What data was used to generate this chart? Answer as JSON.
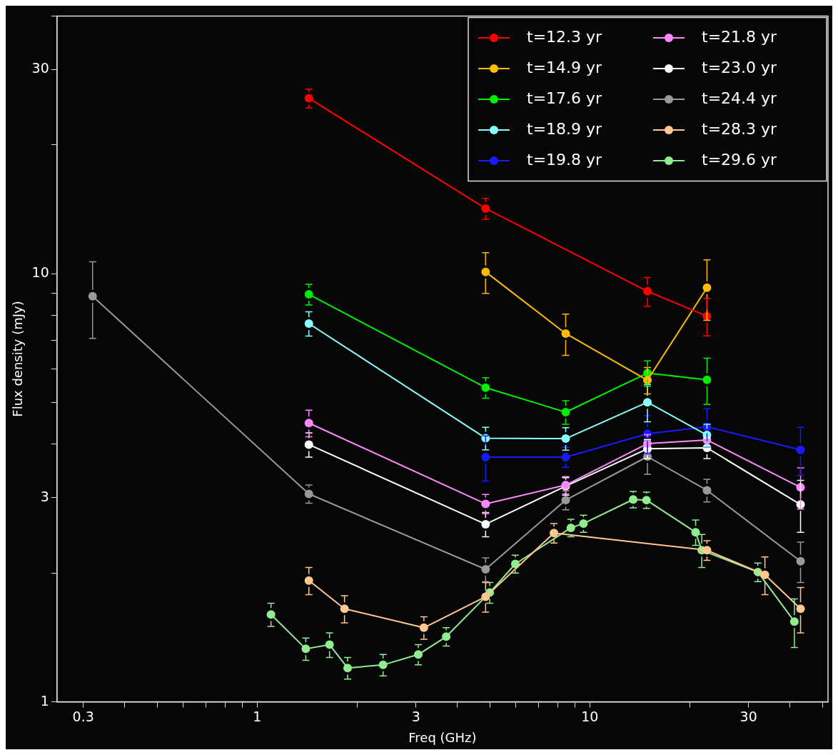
{
  "chart_data": {
    "type": "line",
    "xlabel": "Freq (GHz)",
    "ylabel": "Flux density (mJy)",
    "log": "xy",
    "xlim": [
      0.25,
      52
    ],
    "ylim": [
      1,
      40
    ],
    "xticks": [
      0.3,
      {
        "value": 0.4,
        "label": null
      },
      {
        "value": 0.5,
        "label": null
      },
      {
        "value": 0.6,
        "label": null
      },
      {
        "value": 0.7,
        "label": null
      },
      {
        "value": 0.8,
        "label": null
      },
      {
        "value": 0.9,
        "label": null
      },
      1,
      {
        "value": 2,
        "label": null
      },
      3,
      {
        "value": 4,
        "label": null
      },
      {
        "value": 5,
        "label": null
      },
      {
        "value": 6,
        "label": null
      },
      {
        "value": 7,
        "label": null
      },
      {
        "value": 8,
        "label": null
      },
      {
        "value": 9,
        "label": null
      },
      10,
      {
        "value": 20,
        "label": null
      },
      30,
      {
        "value": 40,
        "label": null
      },
      {
        "value": 50,
        "label": null
      }
    ],
    "yticks": [
      1,
      {
        "value": 2,
        "label": null
      },
      3,
      {
        "value": 4,
        "label": null
      },
      {
        "value": 5,
        "label": null
      },
      {
        "value": 6,
        "label": null
      },
      {
        "value": 7,
        "label": null
      },
      {
        "value": 8,
        "label": null
      },
      {
        "value": 9,
        "label": null
      },
      10,
      {
        "value": 20,
        "label": null
      },
      30,
      {
        "value": 40,
        "label": null
      }
    ],
    "grid": false,
    "legend": "top right",
    "marker": "circle",
    "line_style": "solid",
    "series": [
      {
        "name": "t=12.3 yr",
        "color": "#ff0000",
        "x": [
          1.43,
          4.86,
          14.9,
          22.5
        ],
        "values": [
          25.7,
          14.2,
          9.1,
          7.96
        ],
        "errors": [
          1.3,
          0.8,
          0.7,
          0.8
        ]
      },
      {
        "name": "t=14.9 yr",
        "color": "#ffbb00",
        "x": [
          4.86,
          8.46,
          14.9,
          22.5
        ],
        "values": [
          10.1,
          7.25,
          5.64,
          9.28
        ],
        "errors": [
          1.1,
          0.8,
          0.4,
          1.5
        ]
      },
      {
        "name": "t=17.6 yr",
        "color": "#00ee00",
        "x": [
          1.43,
          4.86,
          8.46,
          14.9,
          22.5
        ],
        "values": [
          8.95,
          5.42,
          4.75,
          5.86,
          5.65
        ],
        "errors": [
          0.5,
          0.3,
          0.3,
          0.4,
          0.7
        ]
      },
      {
        "name": "t=18.9 yr",
        "color": "#88ffff",
        "x": [
          1.43,
          4.86,
          8.46,
          14.9,
          22.5
        ],
        "values": [
          7.65,
          4.13,
          4.12,
          5.01,
          4.2
        ],
        "errors": [
          0.5,
          0.25,
          0.25,
          0.5,
          0.25
        ]
      },
      {
        "name": "t=19.8 yr",
        "color": "#1a1aff",
        "x": [
          4.86,
          8.46,
          14.9,
          22.5,
          43
        ],
        "values": [
          3.73,
          3.73,
          4.23,
          4.39,
          3.88
        ],
        "errors": [
          0.45,
          0.2,
          0.43,
          0.45,
          0.5
        ]
      },
      {
        "name": "t=21.8 yr",
        "color": "#ff88ff",
        "x": [
          1.43,
          4.86,
          8.46,
          14.9,
          22.5,
          43
        ],
        "values": [
          4.48,
          2.9,
          3.21,
          4.01,
          4.09,
          3.17
        ],
        "errors": [
          0.32,
          0.15,
          0.15,
          0.2,
          null,
          0.35
        ]
      },
      {
        "name": "t=23.0 yr",
        "color": "#ffffff",
        "x": [
          1.43,
          4.86,
          8.46,
          14.9,
          22.5,
          43
        ],
        "values": [
          3.99,
          2.6,
          3.19,
          3.9,
          3.92,
          2.89
        ],
        "errors": [
          0.26,
          0.17,
          0.15,
          0.2,
          0.22,
          0.4
        ]
      },
      {
        "name": "t=24.4 yr",
        "color": "#999999",
        "x": [
          0.32,
          1.43,
          4.86,
          8.46,
          14.9,
          22.5,
          43
        ],
        "values": [
          8.86,
          3.06,
          2.04,
          2.96,
          3.74,
          3.12,
          2.13
        ],
        "errors": [
          1.8,
          0.15,
          0.13,
          0.15,
          0.34,
          0.19,
          0.23
        ]
      },
      {
        "name": "t=28.3 yr",
        "color": "#ffc890",
        "x": [
          1.43,
          1.83,
          3.17,
          4.86,
          7.8,
          22.5,
          33.6,
          43
        ],
        "values": [
          1.92,
          1.65,
          1.49,
          1.76,
          2.48,
          2.26,
          1.98,
          1.65
        ],
        "errors": [
          0.14,
          0.12,
          0.09,
          0.14,
          0.13,
          0.12,
          0.2,
          0.2
        ]
      },
      {
        "name": "t=29.6 yr",
        "color": "#90ee90",
        "x": [
          1.1,
          1.4,
          1.65,
          1.87,
          2.39,
          3.05,
          3.7,
          5.0,
          5.97,
          8.77,
          9.57,
          13.5,
          14.8,
          20.8,
          21.7,
          32.0,
          41.2
        ],
        "values": [
          1.6,
          1.33,
          1.36,
          1.2,
          1.22,
          1.29,
          1.42,
          1.8,
          2.1,
          2.55,
          2.61,
          2.97,
          2.96,
          2.49,
          2.26,
          2.01,
          1.54
        ],
        "errors": [
          0.1,
          0.08,
          0.09,
          0.07,
          0.07,
          0.07,
          0.07,
          0.1,
          0.1,
          0.12,
          0.12,
          0.13,
          0.13,
          0.17,
          0.2,
          0.1,
          0.2
        ]
      }
    ]
  }
}
